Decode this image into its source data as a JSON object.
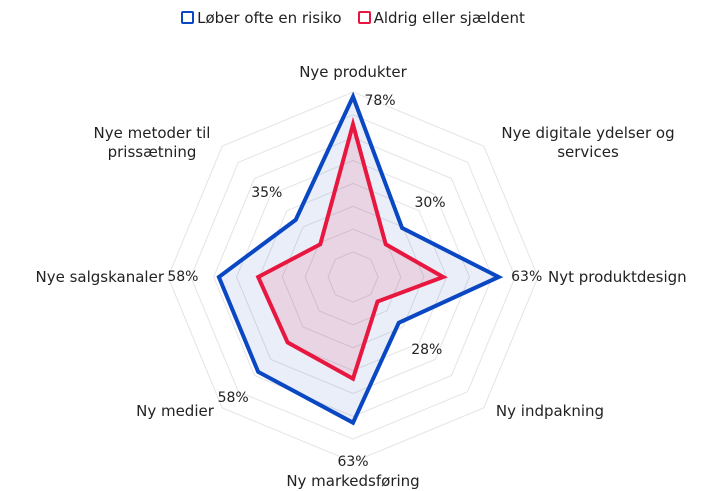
{
  "chart_data": {
    "type": "radar",
    "categories": [
      "Nye produkter",
      "Nye digitale ydelser og services",
      "Nyt produktdesign",
      "Ny indpakning",
      "Ny markedsføring",
      "Ny medier",
      "Nye salgskanaler",
      "Nye metoder til prissætning"
    ],
    "series": [
      {
        "name": "Løber ofte en risiko",
        "color": "#0a47c2",
        "values": [
          78,
          30,
          63,
          28,
          63,
          58,
          58,
          35
        ],
        "value_labels": [
          "78%",
          "30%",
          "63%",
          "28%",
          "63%",
          "58%",
          "58%",
          "35%"
        ]
      },
      {
        "name": "Aldrig eller sjældent",
        "color": "#e8173f",
        "values": [
          66,
          20,
          39,
          15,
          44,
          40,
          41,
          20
        ]
      }
    ],
    "rlim": [
      0,
      80
    ]
  }
}
